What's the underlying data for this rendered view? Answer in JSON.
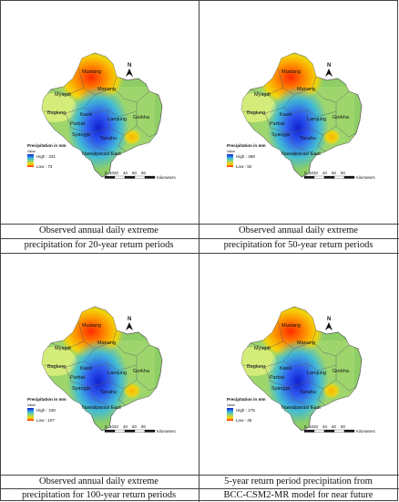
{
  "panels": [
    {
      "legend_title": "Precipitation in mm",
      "legend_value": "Value",
      "high_label": "High : 331",
      "low_label": "Low : 73",
      "caption_line1": "Observed annual daily extreme",
      "caption_line2": "precipitation for 20-year return periods",
      "high": 331,
      "low": 73
    },
    {
      "legend_title": "Precipitation in mm",
      "legend_value": "Value",
      "high_label": "High : 388",
      "low_label": "Low : 92",
      "caption_line1": "Observed annual daily extreme",
      "caption_line2": "precipitation for 50-year return periods",
      "high": 388,
      "low": 92
    },
    {
      "legend_title": "Precipitation in mm",
      "legend_value": "Value",
      "high_label": "High : 430",
      "low_label": "Low : 107",
      "caption_line1": "Observed annual daily extreme",
      "caption_line2": "precipitation for 100-year return periods",
      "high": 430,
      "low": 107
    },
    {
      "legend_title": "Precipitation in mm",
      "legend_value": "Value",
      "high_label": "High : 275",
      "low_label": "Low : 46",
      "caption_line1": "5-year return period precipitation from",
      "caption_line2": "BCC-CSM2-MR model for near future",
      "high": 275,
      "low": 46
    }
  ],
  "map_labels": {
    "mustang": "Mustang",
    "myagdi": "Myagdi",
    "manang": "Manang",
    "baglung": "Baglung",
    "kaski": "Kaski",
    "parbat": "Parbat",
    "lamjung": "Lamjung",
    "gorkha": "Gorkha",
    "syangja": "Syangja",
    "tanahu": "Tanahu",
    "nawalparasi": "Nawalparasi East",
    "north": "N"
  },
  "scale": {
    "ticks": [
      "0",
      "10",
      "20",
      "40",
      "60",
      "80"
    ],
    "unit": "Kilometers"
  },
  "colors": {
    "high": "#ff2a00",
    "mid_high": "#ffd400",
    "mid": "#9ad86a",
    "mid_low": "#37b7e0",
    "low": "#1020d0",
    "outside": "#8fce66"
  }
}
